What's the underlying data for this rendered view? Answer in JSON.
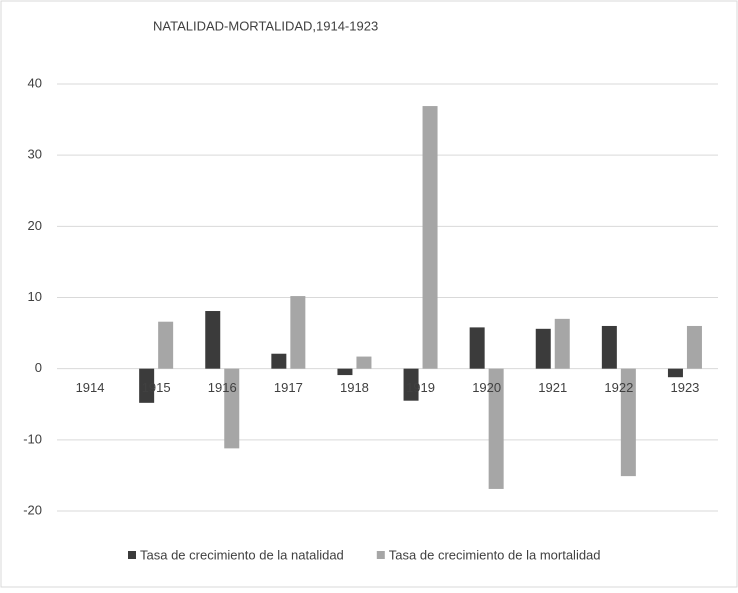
{
  "chart_data": {
    "type": "bar",
    "title": "NATALIDAD-MORTALIDAD,1914-1923",
    "categories": [
      "1914",
      "1915",
      "1916",
      "1917",
      "1918",
      "1919",
      "1920",
      "1921",
      "1922",
      "1923"
    ],
    "series": [
      {
        "name": "Tasa de crecimiento de la natalidad",
        "color": "#3b3b3b",
        "values": [
          null,
          -4.8,
          8.1,
          2.1,
          -0.9,
          -4.5,
          5.8,
          5.6,
          6.0,
          -1.2
        ]
      },
      {
        "name": "Tasa de crecimiento de la mortalidad",
        "color": "#a6a6a6",
        "values": [
          null,
          6.6,
          -11.2,
          10.2,
          1.7,
          36.9,
          -16.9,
          7.0,
          -15.1,
          6.0
        ]
      }
    ],
    "ylim": [
      -20,
      40
    ],
    "yticks": [
      -20,
      -10,
      0,
      10,
      20,
      30,
      40
    ],
    "grid": true,
    "legend": "bottom"
  }
}
